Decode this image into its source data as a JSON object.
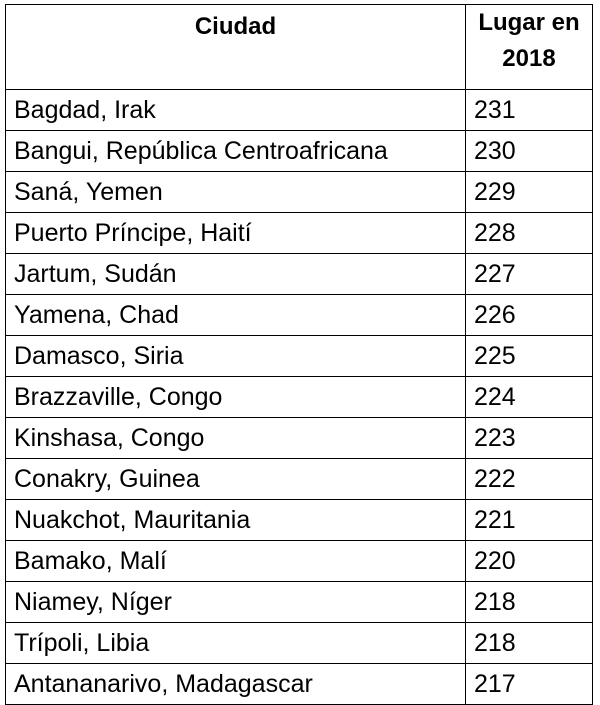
{
  "table": {
    "header": [
      "Ciudad",
      "Lugar en 2018"
    ],
    "rows": [
      [
        "Bagdad, Irak",
        231
      ],
      [
        "Bangui, República Centroafricana",
        230
      ],
      [
        "Saná, Yemen",
        229
      ],
      [
        "Puerto Príncipe, Haití",
        228
      ],
      [
        "Jartum, Sudán",
        227
      ],
      [
        "Yamena, Chad",
        226
      ],
      [
        "Damasco, Siria",
        225
      ],
      [
        "Brazzaville, Congo",
        224
      ],
      [
        "Kinshasa, Congo",
        223
      ],
      [
        "Conakry, Guinea",
        222
      ],
      [
        "Nuakchot, Mauritania",
        221
      ],
      [
        "Bamako, Malí",
        220
      ],
      [
        "Niamey, Níger",
        218
      ],
      [
        "Trípoli, Libia",
        218
      ],
      [
        "Antananarivo, Madagascar",
        217
      ]
    ]
  }
}
